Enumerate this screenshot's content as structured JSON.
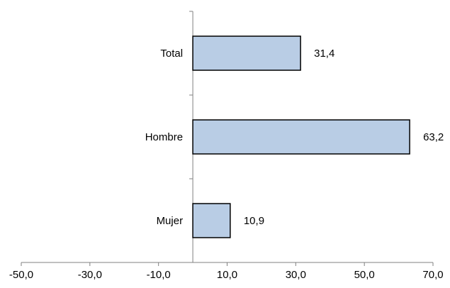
{
  "chart_data": {
    "type": "bar",
    "orientation": "horizontal",
    "title": "",
    "xlabel": "",
    "ylabel": "",
    "categories": [
      "Total",
      "Hombre",
      "Mujer"
    ],
    "values": [
      31.4,
      63.2,
      10.9
    ],
    "value_labels": [
      "31,4",
      "63,2",
      "10,9"
    ],
    "xlim": [
      -50,
      70
    ],
    "x_ticks": [
      -50,
      -30,
      -10,
      10,
      30,
      50,
      70
    ],
    "x_tick_labels": [
      "-50,0",
      "-30,0",
      "-10,0",
      "10,0",
      "30,0",
      "50,0",
      "70,0"
    ],
    "grid": false,
    "legend": "none",
    "colors": {
      "bar_fill": "#b9cde5",
      "bar_stroke": "#000000",
      "axis": "#808080",
      "text": "#000000"
    }
  }
}
